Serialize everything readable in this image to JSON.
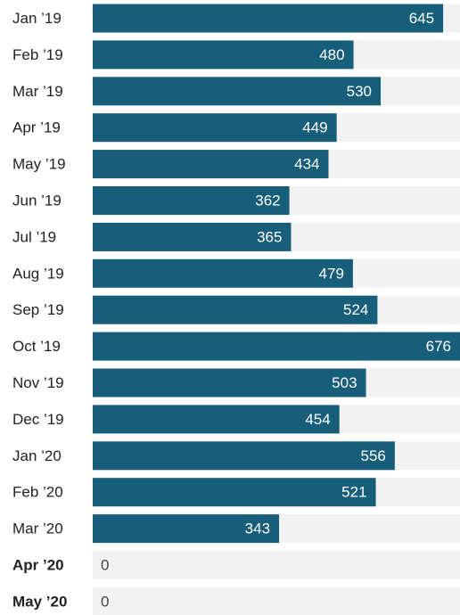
{
  "chart_data": {
    "type": "bar",
    "orientation": "horizontal",
    "categories": [
      "Jan ’19",
      "Feb ’19",
      "Mar ’19",
      "Apr ’19",
      "May ’19",
      "Jun ’19",
      "Jul ’19",
      "Aug ’19",
      "Sep ’19",
      "Oct ’19",
      "Nov ’19",
      "Dec ’19",
      "Jan ’20",
      "Feb ’20",
      "Mar ’20",
      "Apr ’20",
      "May ’20"
    ],
    "values": [
      645,
      480,
      530,
      449,
      434,
      362,
      365,
      479,
      524,
      676,
      503,
      454,
      556,
      521,
      343,
      0,
      0
    ],
    "color": "#175e7a",
    "track_color": "#f2f2f2",
    "xlim": [
      0,
      676
    ]
  }
}
